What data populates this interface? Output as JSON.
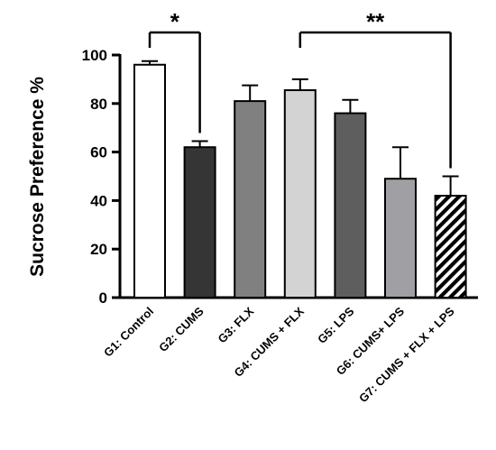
{
  "chart_data": {
    "type": "bar",
    "title": "",
    "xlabel": "",
    "ylabel": "Sucrose Preference %",
    "ylim": [
      0,
      100
    ],
    "yticks": [
      0,
      20,
      40,
      60,
      80,
      100
    ],
    "grid": false,
    "legend": "none",
    "categories": [
      "G1: Control",
      "G2: CUMS",
      "G3: FLX",
      "G4: CUMS + FLX",
      "G5: LPS",
      "G6: CUMS+ LPS",
      "G7: CUMS + FLX + LPS"
    ],
    "values": [
      96,
      62,
      81,
      85.5,
      76,
      49,
      42
    ],
    "error": [
      1.5,
      2.5,
      6.5,
      4.5,
      5.5,
      13,
      8
    ],
    "colors": [
      "#ffffff",
      "#353535",
      "#808080",
      "#d3d3d3",
      "#5e5e5e",
      "#a0a0a4",
      "hatched"
    ],
    "significance": [
      {
        "from": 0,
        "to": 1,
        "label": "*"
      },
      {
        "from": 3,
        "to": 6,
        "label": "**"
      }
    ]
  }
}
